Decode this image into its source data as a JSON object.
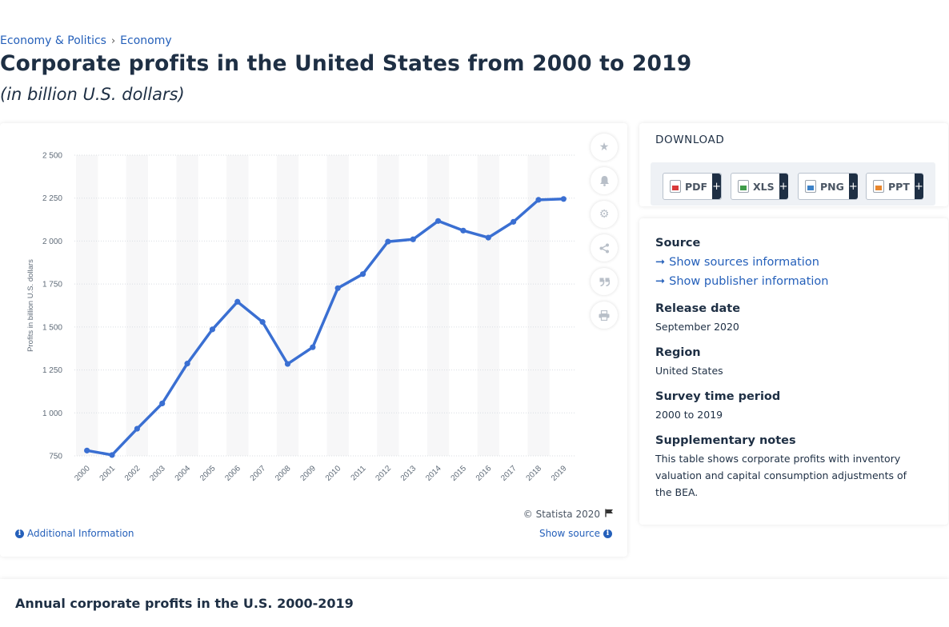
{
  "breadcrumb": {
    "items": [
      "Economy & Politics",
      "Economy"
    ]
  },
  "page": {
    "title": "Corporate profits in the United States from 2000 to 2019",
    "subtitle": "(in billion U.S. dollars)"
  },
  "chart_data": {
    "type": "line",
    "categories": [
      "2000",
      "2001",
      "2002",
      "2003",
      "2004",
      "2005",
      "2006",
      "2007",
      "2008",
      "2009",
      "2010",
      "2011",
      "2012",
      "2013",
      "2014",
      "2015",
      "2016",
      "2017",
      "2018",
      "2019"
    ],
    "series": [
      {
        "values": [
          781,
          755,
          908,
          1055,
          1287,
          1486,
          1647,
          1529,
          1285,
          1382,
          1726,
          1808,
          1997,
          2010,
          2117,
          2061,
          2020,
          2112,
          2240,
          2245
        ]
      }
    ],
    "ylabel": "Profits in billion U.S. dollars",
    "xlabel": "",
    "ylim": [
      750,
      2500
    ],
    "yticks": [
      750,
      1000,
      1250,
      1500,
      1750,
      2000,
      2250,
      2500
    ],
    "ytick_labels": [
      "750",
      "1 000",
      "1 250",
      "1 500",
      "1 750",
      "2 000",
      "2 250",
      "2 500"
    ],
    "grid": true,
    "line_color": "#3a6fd2"
  },
  "chart_footer": {
    "copyright": "© Statista 2020",
    "additional_info": "Additional Information",
    "show_source": "Show source"
  },
  "toolbar": {
    "icons": [
      "star-icon",
      "bell-icon",
      "gear-icon",
      "share-icon",
      "quote-icon",
      "print-icon"
    ]
  },
  "download": {
    "title": "DOWNLOAD",
    "buttons": [
      {
        "label": "PDF",
        "icon": "pdf-file-icon",
        "plus": "+"
      },
      {
        "label": "XLS",
        "icon": "xls-file-icon",
        "plus": "+"
      },
      {
        "label": "PNG",
        "icon": "png-file-icon",
        "plus": "+"
      },
      {
        "label": "PPT",
        "icon": "ppt-file-icon",
        "plus": "+"
      }
    ]
  },
  "info": {
    "source_label": "Source",
    "show_sources": "Show sources information",
    "show_publisher": "Show publisher information",
    "release_label": "Release date",
    "release_value": "September 2020",
    "region_label": "Region",
    "region_value": "United States",
    "survey_label": "Survey time period",
    "survey_value": "2000 to 2019",
    "notes_label": "Supplementary notes",
    "notes_value": "This table shows corporate profits with inventory valuation and capital consumption adjustments of the BEA."
  },
  "table_section": {
    "title": "Annual corporate profits in the U.S. 2000-2019"
  }
}
